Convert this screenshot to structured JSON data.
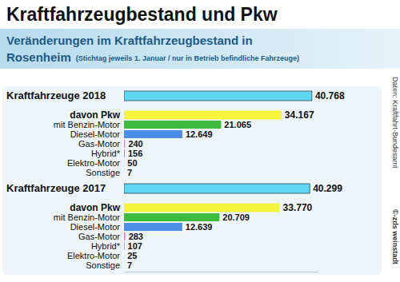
{
  "header": {
    "title": "Kraftfahrzeugbestand und Pkw",
    "subtitle": "Veränderungen im Kraftfahrzeugbestand in Rosenheim",
    "note": "(Stichtag jeweils 1. Januar / nur in Betrieb befindliche Fahrzeuge)"
  },
  "source": "Daten: Kraftfahrt-Bundesamt",
  "credit": "©-zds weinstadt",
  "chart_data": [
    {
      "type": "bar",
      "orientation": "horizontal",
      "data_labels": true,
      "tick_labels": "y",
      "categories": [
        "Kraftfahrzeuge 2018",
        "davon Pkw",
        "mit Benzin-Motor",
        "Diesel-Motor",
        "Gas-Motor",
        "Hybrid*",
        "Elektro-Motor",
        "Sonstige"
      ],
      "values": [
        40768,
        34167,
        21065,
        12649,
        240,
        156,
        50,
        7
      ],
      "value_labels": [
        "40.768",
        "34.167",
        "21.065",
        "12.649",
        "240",
        "156",
        "50",
        "7"
      ],
      "colors": [
        "#5fd6f2",
        "#f4f43c",
        "#3cbb3c",
        "#4c8ee6",
        "#e37fdc",
        "#a07ee0",
        "#a6dcf2",
        "#c8c8c8"
      ],
      "xlim": [
        0,
        42000
      ]
    },
    {
      "type": "bar",
      "orientation": "horizontal",
      "data_labels": true,
      "tick_labels": "y",
      "categories": [
        "Kraftfahrzeuge 2017",
        "davon Pkw",
        "mit Benzin-Motor",
        "Diesel-Motor",
        "Gas-Motor",
        "Hybrid*",
        "Elektro-Motor",
        "Sonstige"
      ],
      "values": [
        40299,
        33770,
        20709,
        12639,
        283,
        107,
        25,
        7
      ],
      "value_labels": [
        "40.299",
        "33.770",
        "20.709",
        "12.639",
        "283",
        "107",
        "25",
        "7"
      ],
      "colors": [
        "#5fd6f2",
        "#f4f43c",
        "#3cbb3c",
        "#4c8ee6",
        "#e37fdc",
        "#a07ee0",
        "#a6dcf2",
        "#c8c8c8"
      ],
      "xlim": [
        0,
        42000
      ]
    }
  ]
}
